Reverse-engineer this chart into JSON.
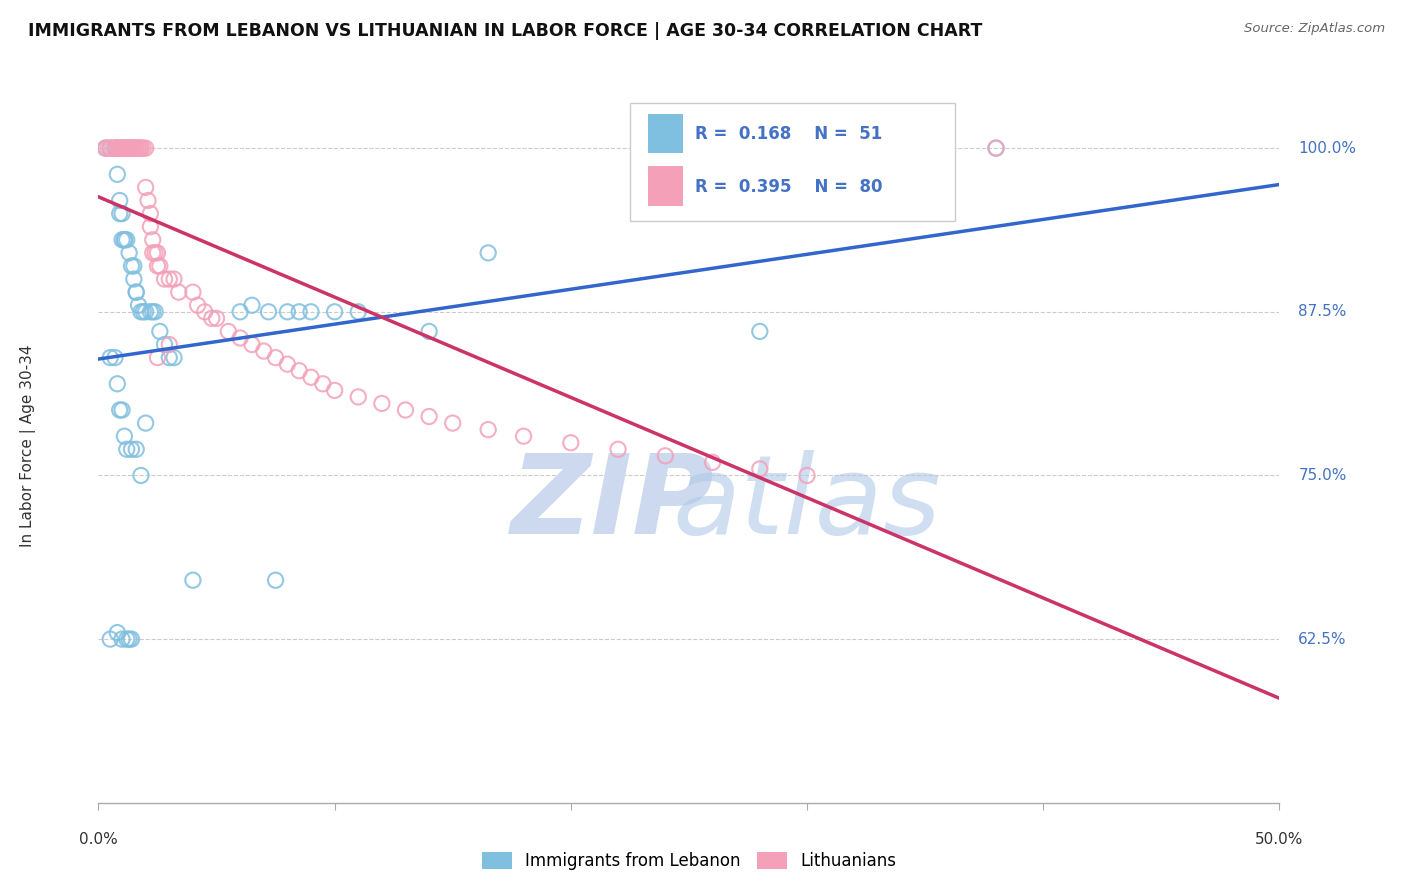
{
  "title": "IMMIGRANTS FROM LEBANON VS LITHUANIAN IN LABOR FORCE | AGE 30-34 CORRELATION CHART",
  "source": "Source: ZipAtlas.com",
  "ylabel": "In Labor Force | Age 30-34",
  "ytick_labels": [
    "100.0%",
    "87.5%",
    "75.0%",
    "62.5%"
  ],
  "ytick_values": [
    1.0,
    0.875,
    0.75,
    0.625
  ],
  "xlim": [
    0.0,
    0.5
  ],
  "ylim": [
    0.5,
    1.045
  ],
  "legend_R1": "0.168",
  "legend_N1": "51",
  "legend_R2": "0.395",
  "legend_N2": "80",
  "blue_color": "#7fbfdf",
  "pink_color": "#f4a0b8",
  "blue_line_color": "#3366cc",
  "pink_line_color": "#cc3366",
  "text_blue": "#4472c4",
  "lebanon_points_x": [
    0.003,
    0.005,
    0.007,
    0.008,
    0.008,
    0.009,
    0.009,
    0.01,
    0.01,
    0.011,
    0.011,
    0.012,
    0.013,
    0.014,
    0.015,
    0.015,
    0.016,
    0.016,
    0.017,
    0.018,
    0.019,
    0.02,
    0.022,
    0.023,
    0.024,
    0.026,
    0.028,
    0.03,
    0.032,
    0.06,
    0.065,
    0.072,
    0.08,
    0.085,
    0.09,
    0.1,
    0.11,
    0.14,
    0.165,
    0.005,
    0.007,
    0.008,
    0.009,
    0.01,
    0.011,
    0.012,
    0.014,
    0.016,
    0.018,
    0.02,
    0.38
  ],
  "lebanon_points_y": [
    1.0,
    1.0,
    1.0,
    1.0,
    0.98,
    0.96,
    0.95,
    0.95,
    0.93,
    0.93,
    0.93,
    0.93,
    0.92,
    0.91,
    0.91,
    0.9,
    0.89,
    0.89,
    0.88,
    0.875,
    0.875,
    0.875,
    0.875,
    0.875,
    0.875,
    0.86,
    0.85,
    0.84,
    0.84,
    0.875,
    0.88,
    0.875,
    0.875,
    0.875,
    0.875,
    0.875,
    0.875,
    0.86,
    0.92,
    0.84,
    0.84,
    0.82,
    0.8,
    0.8,
    0.78,
    0.77,
    0.77,
    0.77,
    0.75,
    0.79,
    1.0
  ],
  "lebanon_points_x2": [
    0.005,
    0.008,
    0.01,
    0.012,
    0.013,
    0.014,
    0.04,
    0.075,
    0.28
  ],
  "lebanon_points_y2": [
    0.625,
    0.63,
    0.625,
    0.625,
    0.625,
    0.625,
    0.67,
    0.67,
    0.86
  ],
  "lithuanian_points_x": [
    0.003,
    0.004,
    0.005,
    0.006,
    0.007,
    0.008,
    0.008,
    0.009,
    0.009,
    0.01,
    0.01,
    0.01,
    0.011,
    0.011,
    0.011,
    0.012,
    0.012,
    0.013,
    0.013,
    0.013,
    0.014,
    0.014,
    0.015,
    0.015,
    0.015,
    0.016,
    0.016,
    0.017,
    0.017,
    0.018,
    0.018,
    0.019,
    0.02,
    0.02,
    0.021,
    0.022,
    0.022,
    0.023,
    0.023,
    0.024,
    0.025,
    0.025,
    0.026,
    0.028,
    0.03,
    0.032,
    0.034,
    0.04,
    0.042,
    0.045,
    0.048,
    0.05,
    0.055,
    0.06,
    0.065,
    0.07,
    0.075,
    0.08,
    0.085,
    0.09,
    0.095,
    0.1,
    0.11,
    0.12,
    0.13,
    0.14,
    0.15,
    0.165,
    0.18,
    0.2,
    0.22,
    0.24,
    0.26,
    0.28,
    0.3,
    0.38,
    0.025,
    0.03
  ],
  "lithuanian_points_y": [
    1.0,
    1.0,
    1.0,
    1.0,
    1.0,
    1.0,
    1.0,
    1.0,
    1.0,
    1.0,
    1.0,
    1.0,
    1.0,
    1.0,
    1.0,
    1.0,
    1.0,
    1.0,
    1.0,
    1.0,
    1.0,
    1.0,
    1.0,
    1.0,
    1.0,
    1.0,
    1.0,
    1.0,
    1.0,
    1.0,
    1.0,
    1.0,
    1.0,
    0.97,
    0.96,
    0.95,
    0.94,
    0.93,
    0.92,
    0.92,
    0.92,
    0.91,
    0.91,
    0.9,
    0.9,
    0.9,
    0.89,
    0.89,
    0.88,
    0.875,
    0.87,
    0.87,
    0.86,
    0.855,
    0.85,
    0.845,
    0.84,
    0.835,
    0.83,
    0.825,
    0.82,
    0.815,
    0.81,
    0.805,
    0.8,
    0.795,
    0.79,
    0.785,
    0.78,
    0.775,
    0.77,
    0.765,
    0.76,
    0.755,
    0.75,
    1.0,
    0.84,
    0.85
  ]
}
